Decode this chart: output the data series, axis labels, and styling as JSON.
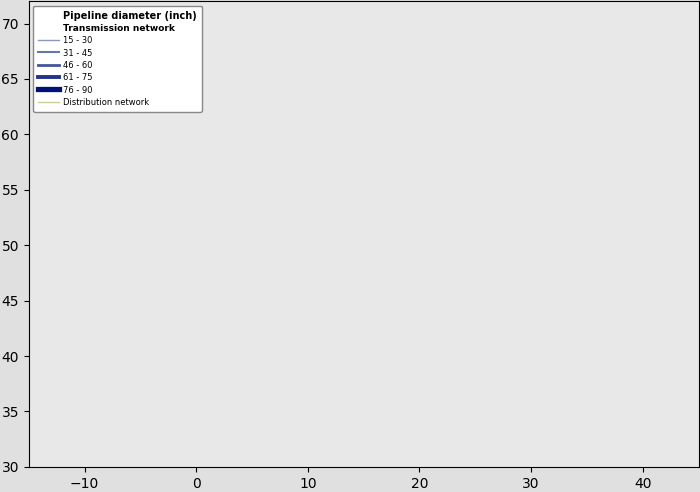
{
  "title": "",
  "legend_title1": "Pipeline diameter (inch)",
  "legend_title2": "Transmission network",
  "legend_entries": [
    {
      "label": "15 - 30",
      "color": "#8899bb",
      "linewidth": 1.0
    },
    {
      "label": "31 - 45",
      "color": "#6677aa",
      "linewidth": 1.5
    },
    {
      "label": "46 - 60",
      "color": "#445599",
      "linewidth": 2.0
    },
    {
      "label": "61 - 75",
      "color": "#223388",
      "linewidth": 2.8
    },
    {
      "label": "76 - 90",
      "color": "#001177",
      "linewidth": 3.8
    },
    {
      "label": "Distribution network",
      "color": "#cccc99",
      "linewidth": 1.0
    }
  ],
  "background_land_color": "#c8c8b4",
  "background_sea_color": "#e8e8e8",
  "eu_land_color": "#e8e4b8",
  "dense_area_color": "#d4a050",
  "border_color": "#ffffff",
  "figure_bg": "#e0e0e0",
  "map_extent": [
    -15,
    45,
    30,
    72
  ],
  "figsize": [
    7.0,
    4.92
  ],
  "dpi": 100
}
